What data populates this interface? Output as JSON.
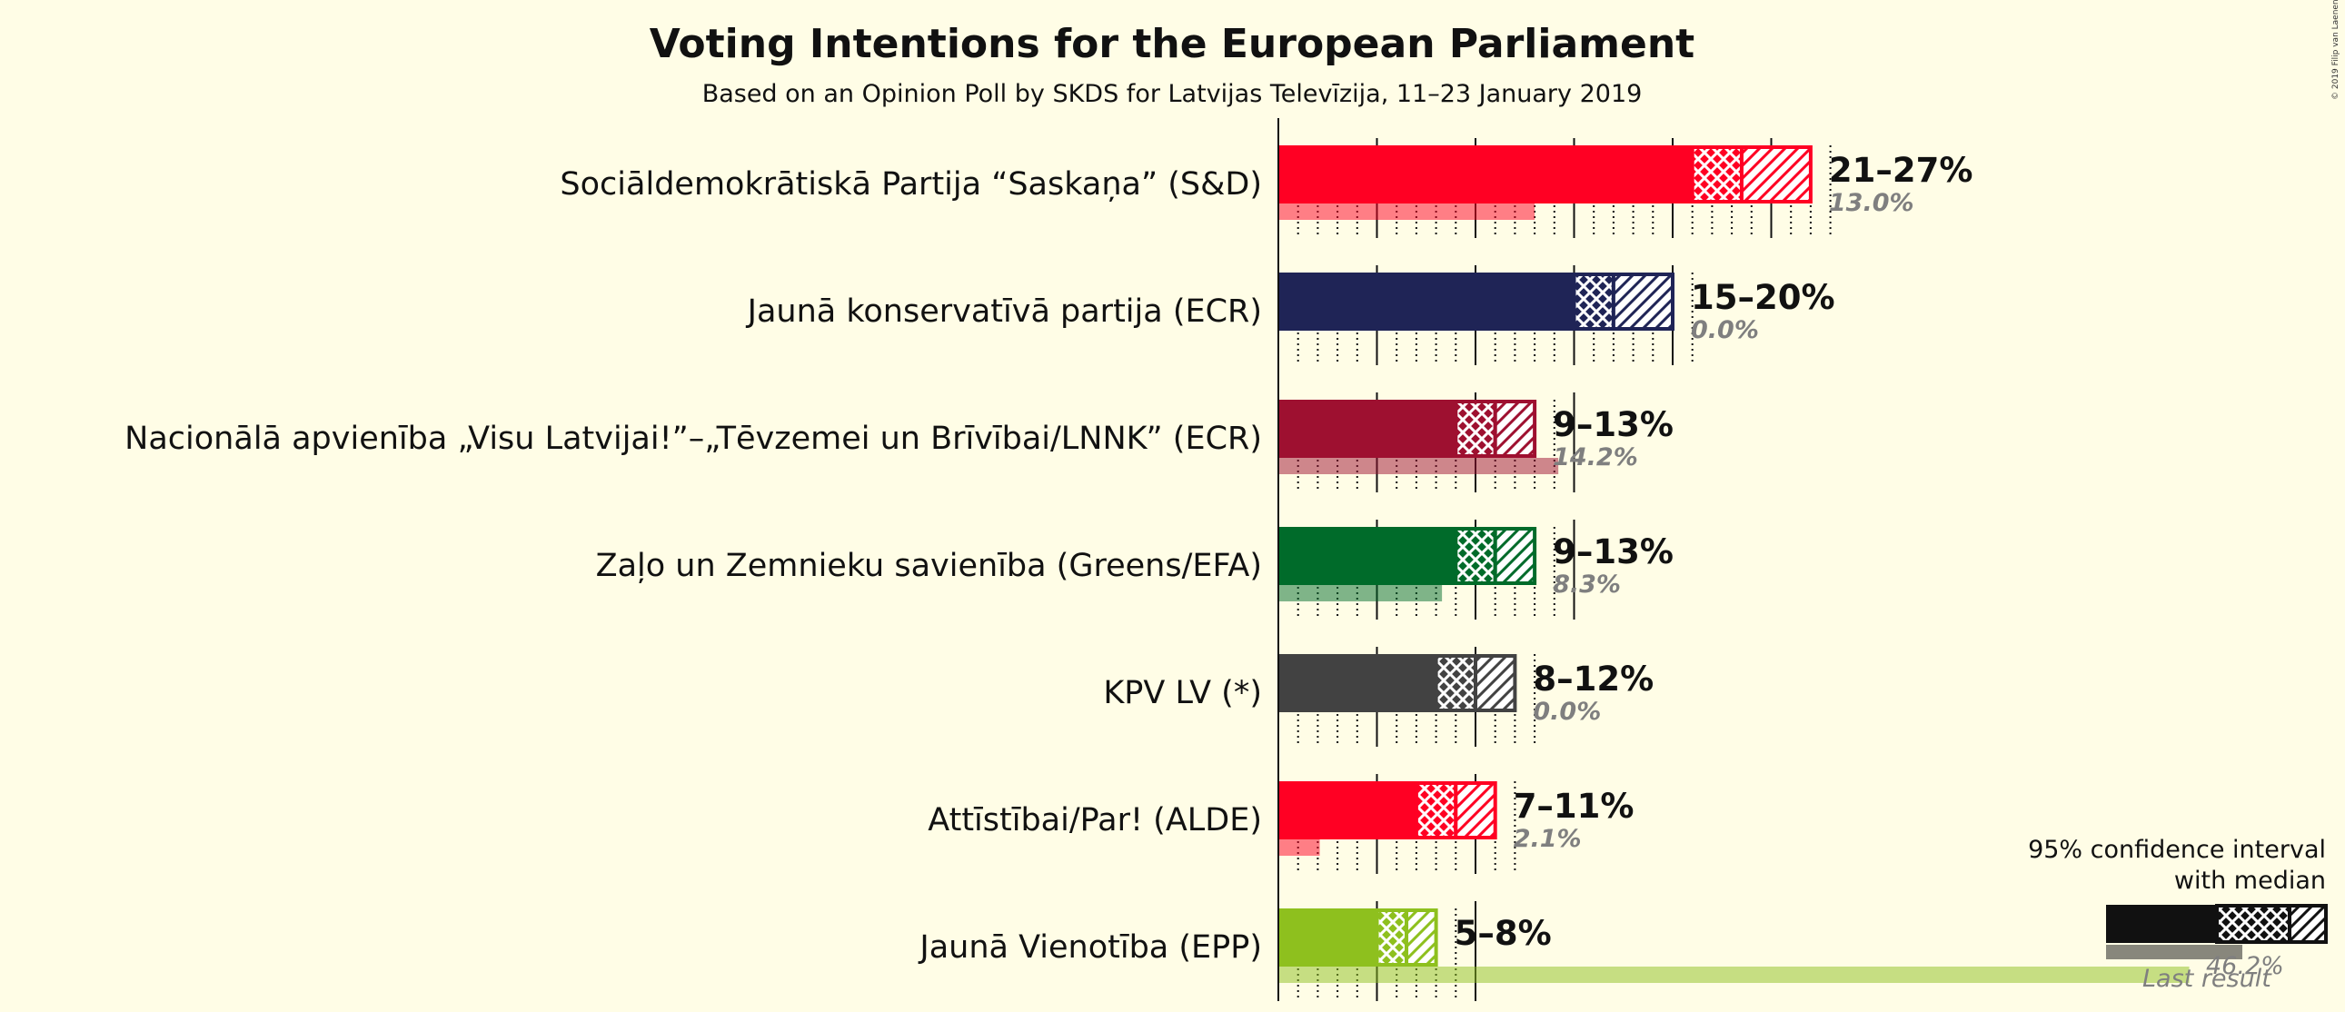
{
  "chart_data": {
    "type": "bar",
    "title": "Voting Intentions for the European Parliament",
    "subtitle": "Based on an Opinion Poll by SKDS for Latvijas Televīzija, 11–23 January 2019",
    "copyright": "© 2019 Filip van Laenen",
    "xlim": [
      0,
      54
    ],
    "gridlines_major": [
      0,
      5,
      10,
      15,
      20,
      25,
      30,
      35,
      40,
      45,
      50
    ],
    "parties": [
      {
        "name": "Sociāldemokrātiskā Partija “Saskaņa” (S&D)",
        "low": 21,
        "median": 23.5,
        "high": 27,
        "range_label": "21–27%",
        "last": 13.0,
        "last_label": "13.0%",
        "color": "#ff0023"
      },
      {
        "name": "Jaunā konservatīvā partija (ECR)",
        "low": 15,
        "median": 17,
        "high": 20,
        "range_label": "15–20%",
        "last": 0.0,
        "last_label": "0.0%",
        "color": "#1f2456"
      },
      {
        "name": "Nacionālā apvienība „Visu Latvijai!”–„Tēvzemei un Brīvībai/LNNK” (ECR)",
        "low": 9,
        "median": 11,
        "high": 13,
        "range_label": "9–13%",
        "last": 14.2,
        "last_label": "14.2%",
        "color": "#9e1030"
      },
      {
        "name": "Zaļo un Zemnieku savienība (Greens/EFA)",
        "low": 9,
        "median": 11,
        "high": 13,
        "range_label": "9–13%",
        "last": 8.3,
        "last_label": "8.3%",
        "color": "#006b2a"
      },
      {
        "name": "KPV LV (*)",
        "low": 8,
        "median": 10,
        "high": 12,
        "range_label": "8–12%",
        "last": 0.0,
        "last_label": "0.0%",
        "color": "#424242"
      },
      {
        "name": "Attīstībai/Par! (ALDE)",
        "low": 7,
        "median": 9,
        "high": 11,
        "range_label": "7–11%",
        "last": 2.1,
        "last_label": "2.1%",
        "color": "#ff0023"
      },
      {
        "name": "Jaunā Vienotība (EPP)",
        "low": 5,
        "median": 6.5,
        "high": 8,
        "range_label": "5–8%",
        "last": 46.2,
        "last_label": "",
        "color": "#8ec01e"
      }
    ],
    "legend": {
      "line1": "95% confidence interval",
      "line2": "with median",
      "last_value_label": "46.2%",
      "last_result_label": "Last result",
      "color": "#111111"
    }
  }
}
